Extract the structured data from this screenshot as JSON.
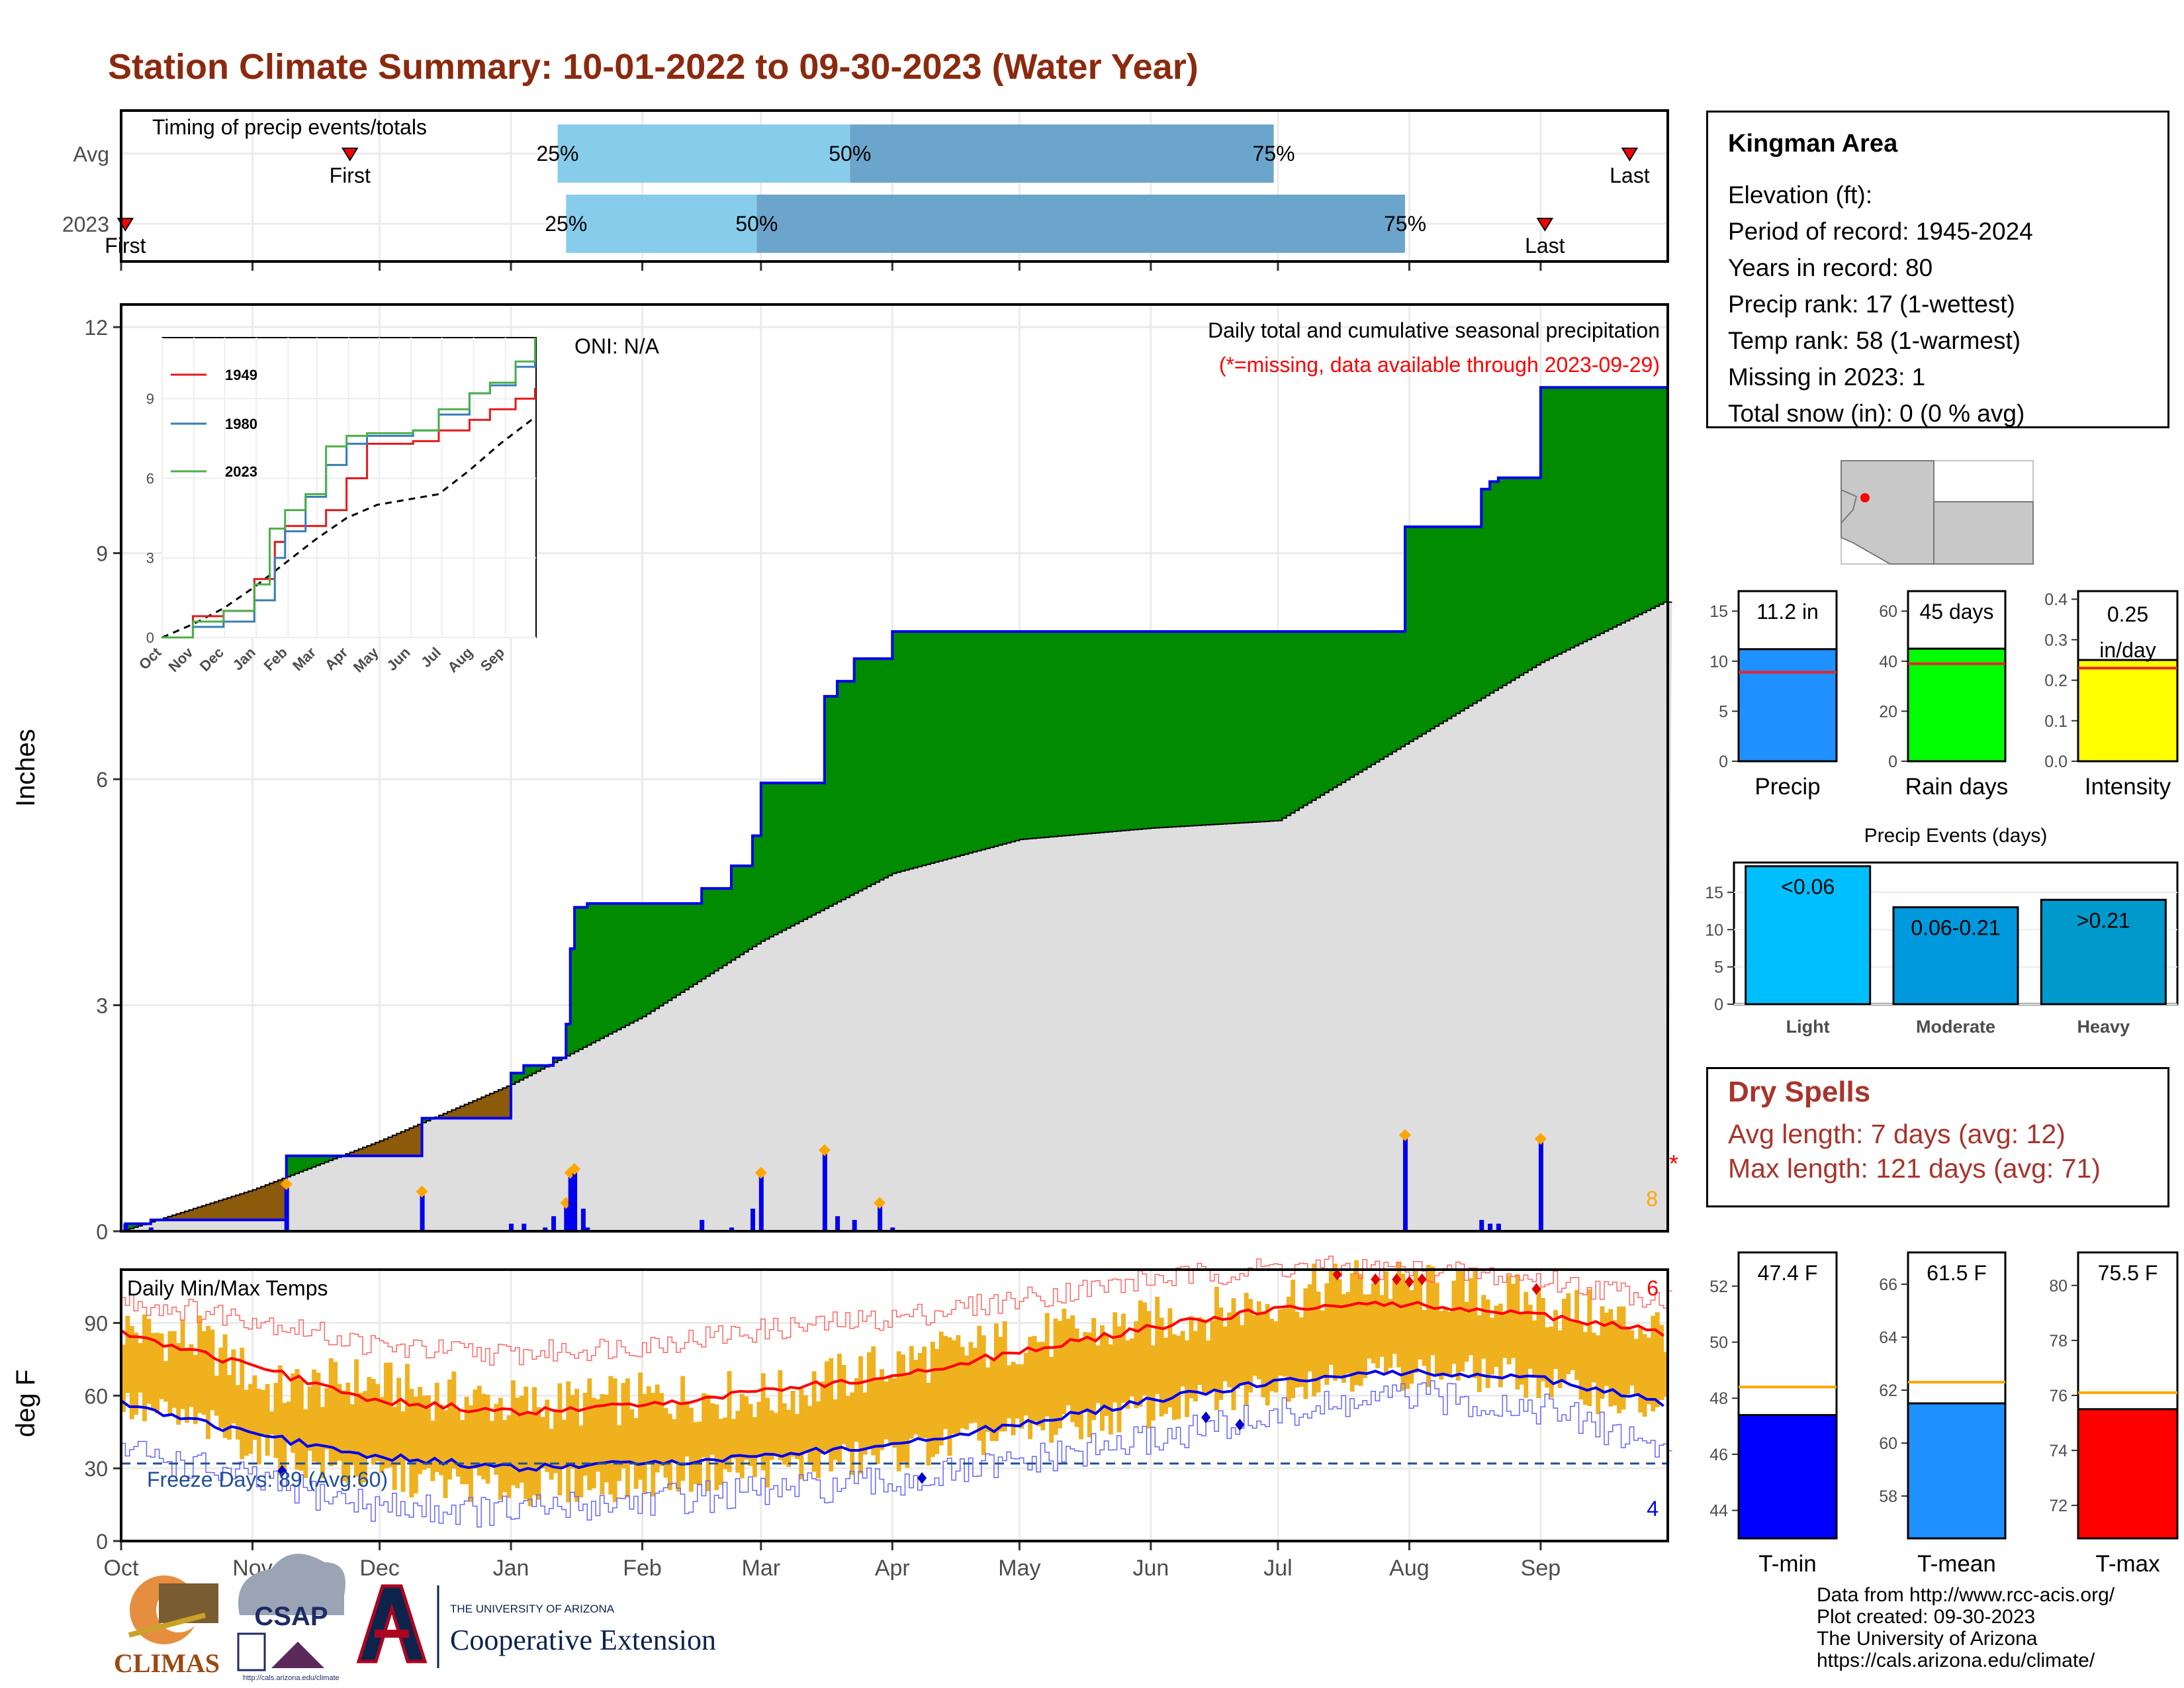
{
  "title": "Station Climate Summary: 10-01-2022 to 09-30-2023 (Water Year)",
  "station": {
    "name": "Kingman Area",
    "lines": [
      "Elevation (ft):",
      "Period of record: 1945-2024",
      "Years in record: 80",
      "Precip rank: 17 (1-wettest)",
      "Temp rank: 58 (1-warmest)",
      "Missing in 2023: 1",
      "Total snow (in): 0 (0 % avg)"
    ]
  },
  "dry_spells": {
    "title": "Dry Spells",
    "lines": [
      "Avg length: 7 days (avg: 12)",
      "Max length: 121 days (avg: 71)"
    ]
  },
  "credits": [
    "Data from http://www.rcc-acis.org/",
    "Plot created: 09-30-2023",
    "The University of Arizona",
    "https://cals.arizona.edu/climate/"
  ],
  "logos": {
    "climas": "CLIMAS",
    "csap": "CSAP",
    "csap_url": "http://cals.arizona.edu/climate",
    "ua_small": "THE UNIVERSITY OF ARIZONA",
    "ua_large": "Cooperative Extension",
    "ua_letter": "A"
  },
  "colors": {
    "title": "#8b2a0e",
    "green": "#008b00",
    "brown": "#8b5a0b",
    "grey": "#dedede",
    "blue": "#0000ee",
    "orange": "#ffa500",
    "tempbar": "#efb11e",
    "red": "#ff0000",
    "light_blue": "#87cdeb",
    "mid_blue": "#6ca5cc"
  },
  "chart_data": [
    {
      "type": "bar",
      "title": "Timing of precip events/totals",
      "rows": [
        {
          "label": "Avg",
          "first": "2022-11-24",
          "p25": "2023-01-12",
          "p50": "2023-03-22",
          "p75": "2023-06-30",
          "last": "2023-09-22",
          "first_label": "First",
          "last_label": "Last",
          "p25_label": "25%",
          "p50_label": "50%",
          "p75_label": "75%"
        },
        {
          "label": "2023",
          "first": "2022-10-02",
          "p25": "2023-01-14",
          "p50": "2023-02-28",
          "p75": "2023-07-31",
          "last": "2023-09-02",
          "first_label": "First",
          "last_label": "Last",
          "p25_label": "25%",
          "p50_label": "50%",
          "p75_label": "75%"
        }
      ]
    },
    {
      "type": "area",
      "ylabel": "Inches",
      "ylim": [
        0,
        12.3
      ],
      "yticks": [
        0,
        3,
        6,
        9,
        12
      ],
      "xtick_labels": [
        "Oct",
        "Nov",
        "Dec",
        "Jan",
        "Feb",
        "Mar",
        "Apr",
        "May",
        "Jun",
        "Jul",
        "Aug",
        "Sep"
      ],
      "annotation_title": "Daily total and cumulative seasonal precipitation",
      "annotation_missing": "(*=missing, data available through 2023-09-29)",
      "oni": "ONI: N/A",
      "count_label": "8",
      "missing_marker": "*",
      "series": [
        {
          "name": "cumulative 2023",
          "x": [
            "2022-10-01",
            "2022-10-02",
            "2022-10-08",
            "2022-11-09",
            "2022-12-11",
            "2023-01-01",
            "2023-01-04",
            "2023-01-11",
            "2023-01-14",
            "2023-01-15",
            "2023-01-16",
            "2023-01-19",
            "2023-02-15",
            "2023-02-22",
            "2023-02-27",
            "2023-03-01",
            "2023-03-02",
            "2023-03-16",
            "2023-03-19",
            "2023-03-23",
            "2023-04-01",
            "2023-07-31",
            "2023-08-18",
            "2023-08-20",
            "2023-08-22",
            "2023-09-01",
            "2023-09-29"
          ],
          "y": [
            0,
            0.1,
            0.15,
            1.0,
            1.5,
            2.1,
            2.2,
            2.3,
            2.75,
            3.75,
            4.3,
            4.35,
            4.55,
            4.85,
            5.25,
            5.95,
            5.95,
            7.1,
            7.3,
            7.6,
            7.96,
            9.35,
            9.85,
            9.95,
            10.0,
            11.2,
            11.2
          ]
        },
        {
          "name": "average cumulative",
          "x": [
            "2022-10-01",
            "2022-11-01",
            "2022-12-01",
            "2023-01-01",
            "2023-02-01",
            "2023-03-01",
            "2023-04-01",
            "2023-05-01",
            "2023-06-01",
            "2023-07-01",
            "2023-08-01",
            "2023-09-01",
            "2023-09-30"
          ],
          "y": [
            0,
            0.55,
            1.2,
            1.95,
            2.85,
            3.85,
            4.75,
            5.2,
            5.35,
            5.45,
            6.5,
            7.55,
            8.35
          ]
        },
        {
          "name": "daily precip",
          "x": [
            "2022-10-02",
            "2022-10-08",
            "2022-11-09",
            "2022-12-11",
            "2023-01-01",
            "2023-01-04",
            "2023-01-09",
            "2023-01-11",
            "2023-01-14",
            "2023-01-15",
            "2023-01-16",
            "2023-01-18",
            "2023-01-19",
            "2023-02-15",
            "2023-02-22",
            "2023-02-27",
            "2023-03-01",
            "2023-03-16",
            "2023-03-19",
            "2023-03-23",
            "2023-03-29",
            "2023-04-01",
            "2023-07-31",
            "2023-08-18",
            "2023-08-20",
            "2023-08-22",
            "2023-09-01"
          ],
          "y": [
            0.1,
            0.05,
            0.6,
            0.5,
            0.1,
            0.1,
            0.05,
            0.2,
            0.35,
            0.75,
            0.8,
            0.3,
            0.05,
            0.15,
            0.05,
            0.3,
            0.75,
            1.05,
            0.2,
            0.15,
            0.35,
            0.05,
            1.25,
            0.15,
            0.1,
            0.1,
            1.2
          ]
        }
      ]
    },
    {
      "type": "line",
      "title": "Daily Min/Max Temps",
      "ylabel": "deg F",
      "ylim": [
        0,
        112
      ],
      "yticks": [
        0,
        30,
        60,
        90
      ],
      "freeze_label": "Freeze Days: 89 (Avg:60)",
      "freeze_line": 32,
      "record_high_count": "6",
      "record_low_count": "4",
      "xtick_labels": [
        "Oct",
        "Nov",
        "Dec",
        "Jan",
        "Feb",
        "Mar",
        "Apr",
        "May",
        "Jun",
        "Jul",
        "Aug",
        "Sep"
      ],
      "series": [
        {
          "name": "avg max",
          "x": [
            "2022-10-01",
            "2022-11-01",
            "2022-12-01",
            "2023-01-01",
            "2023-02-01",
            "2023-03-01",
            "2023-04-01",
            "2023-05-01",
            "2023-06-01",
            "2023-07-01",
            "2023-08-01",
            "2023-09-01",
            "2023-09-30"
          ],
          "y": [
            86,
            72,
            58,
            53,
            56,
            62,
            68,
            78,
            88,
            96,
            98,
            93,
            86
          ]
        },
        {
          "name": "avg min",
          "x": [
            "2022-10-01",
            "2022-11-01",
            "2022-12-01",
            "2023-01-01",
            "2023-02-01",
            "2023-03-01",
            "2023-04-01",
            "2023-05-01",
            "2023-06-01",
            "2023-07-01",
            "2023-08-01",
            "2023-09-01",
            "2023-09-30"
          ],
          "y": [
            57,
            44,
            35,
            30,
            32,
            35,
            40,
            48,
            58,
            66,
            70,
            67,
            57
          ]
        },
        {
          "name": "record max",
          "x": [
            "2022-10-01",
            "2022-11-01",
            "2022-12-01",
            "2023-01-01",
            "2023-02-01",
            "2023-03-01",
            "2023-04-01",
            "2023-05-01",
            "2023-06-01",
            "2023-07-01",
            "2023-08-01",
            "2023-09-01",
            "2023-09-30"
          ],
          "y": [
            99,
            92,
            80,
            77,
            81,
            87,
            92,
            100,
            108,
            113,
            112,
            108,
            100
          ]
        },
        {
          "name": "record min",
          "x": [
            "2022-10-01",
            "2022-11-01",
            "2022-12-01",
            "2023-01-01",
            "2023-02-01",
            "2023-03-01",
            "2023-04-01",
            "2023-05-01",
            "2023-06-01",
            "2023-07-01",
            "2023-08-01",
            "2023-09-01",
            "2023-09-30"
          ],
          "y": [
            38,
            25,
            14,
            12,
            17,
            20,
            24,
            32,
            42,
            52,
            60,
            55,
            38
          ]
        },
        {
          "name": "daily max",
          "x": [
            "2022-10-01",
            "2022-10-20",
            "2022-11-05",
            "2022-11-25",
            "2022-12-15",
            "2023-01-05",
            "2023-01-25",
            "2023-02-15",
            "2023-03-05",
            "2023-03-25",
            "2023-04-15",
            "2023-05-05",
            "2023-05-25",
            "2023-06-15",
            "2023-07-05",
            "2023-07-20",
            "2023-08-05",
            "2023-08-25",
            "2023-09-10",
            "2023-09-29"
          ],
          "y": [
            88,
            82,
            62,
            66,
            60,
            56,
            58,
            60,
            60,
            70,
            78,
            84,
            88,
            94,
            102,
            108,
            104,
            100,
            94,
            88
          ]
        },
        {
          "name": "daily min",
          "x": [
            "2022-10-01",
            "2022-10-20",
            "2022-11-05",
            "2022-11-25",
            "2022-12-15",
            "2023-01-05",
            "2023-01-25",
            "2023-02-15",
            "2023-03-05",
            "2023-03-25",
            "2023-04-15",
            "2023-05-05",
            "2023-05-25",
            "2023-06-15",
            "2023-07-05",
            "2023-07-20",
            "2023-08-05",
            "2023-08-25",
            "2023-09-10",
            "2023-09-29"
          ],
          "y": [
            56,
            48,
            36,
            28,
            24,
            22,
            24,
            28,
            30,
            34,
            40,
            46,
            52,
            58,
            66,
            70,
            70,
            68,
            62,
            54
          ]
        }
      ]
    },
    {
      "type": "bar",
      "categories": [
        "Precip"
      ],
      "values": [
        11.2
      ],
      "avg": [
        8.9
      ],
      "value_label": "11.2 in",
      "ylim": [
        0,
        17
      ],
      "yticks": [
        0,
        5,
        10,
        15
      ]
    },
    {
      "type": "bar",
      "categories": [
        "Rain days"
      ],
      "values": [
        45
      ],
      "avg": [
        39
      ],
      "value_label": "45 days",
      "ylim": [
        0,
        68
      ],
      "yticks": [
        0,
        20,
        40,
        60
      ]
    },
    {
      "type": "bar",
      "categories": [
        "Intensity"
      ],
      "values": [
        0.25
      ],
      "avg": [
        0.23
      ],
      "value_label": "0.25 in/day",
      "ylim": [
        0,
        0.42
      ],
      "yticks": [
        0.0,
        0.1,
        0.2,
        0.3,
        0.4
      ]
    },
    {
      "type": "bar",
      "title": "Precip Events (days)",
      "categories": [
        "Light",
        "Moderate",
        "Heavy"
      ],
      "values": [
        18.5,
        13,
        14
      ],
      "value_labels": [
        "<0.06",
        "0.06-0.21",
        ">0.21"
      ],
      "ylim": [
        0,
        19
      ],
      "yticks": [
        0,
        5,
        10,
        15
      ]
    },
    {
      "type": "bar",
      "categories": [
        "T-min"
      ],
      "values": [
        47.4
      ],
      "avg": [
        48.4
      ],
      "value_label": "47.4 F",
      "ylim": [
        43,
        53.2
      ],
      "yticks": [
        44,
        46,
        48,
        50,
        52
      ]
    },
    {
      "type": "bar",
      "categories": [
        "T-mean"
      ],
      "values": [
        61.5
      ],
      "avg": [
        62.3
      ],
      "value_label": "61.5 F",
      "ylim": [
        56.4,
        67.2
      ],
      "yticks": [
        58,
        60,
        62,
        64,
        66
      ]
    },
    {
      "type": "bar",
      "categories": [
        "T-max"
      ],
      "values": [
        75.5
      ],
      "avg": [
        76.1
      ],
      "value_label": "75.5 F",
      "ylim": [
        70.8,
        81.2
      ],
      "yticks": [
        72,
        74,
        76,
        78,
        80
      ]
    }
  ]
}
